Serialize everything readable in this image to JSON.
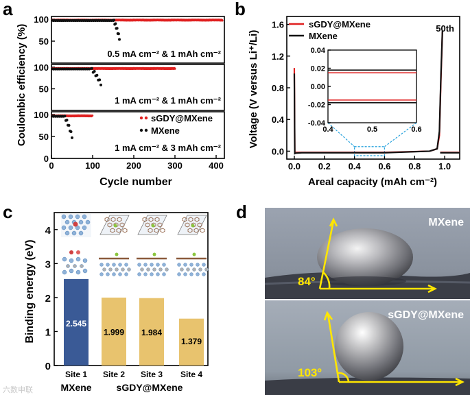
{
  "panel_letters": {
    "a": "a",
    "b": "b",
    "c": "c",
    "d": "d"
  },
  "chart_data": [
    {
      "id": "a",
      "type": "scatter",
      "ylabel": "Coulombic efficiency (%)",
      "xlabel": "Cycle number",
      "xlim": [
        0,
        420
      ],
      "x_ticks": [
        "0",
        "100",
        "200",
        "300",
        "400"
      ],
      "y_ticks": [
        "0",
        "50",
        "100"
      ],
      "legend": [
        "sGDY@MXene",
        "MXene"
      ],
      "series_colors": {
        "sGDY@MXene": "#e02020",
        "MXene": "#111111"
      },
      "subplots": [
        {
          "condition": "0.5 mA cm⁻² & 1 mAh cm⁻²",
          "sGDY_end_cycle": 415,
          "sGDY_ce": 98,
          "MXene_stable_until": 150,
          "MXene_end_cycle": 165,
          "MXene_ce": 97,
          "MXene_final_ce": 57
        },
        {
          "condition": "1 mA cm⁻² & 1 mAh cm⁻²",
          "sGDY_end_cycle": 300,
          "sGDY_ce": 97,
          "MXene_stable_until": 95,
          "MXene_end_cycle": 120,
          "MXene_ce": 96,
          "MXene_final_ce": 62
        },
        {
          "condition": "1 mA cm⁻² & 3 mAh cm⁻²",
          "sGDY_end_cycle": 100,
          "sGDY_ce": 97,
          "MXene_stable_until": 30,
          "MXene_end_cycle": 50,
          "MXene_ce": 96,
          "MXene_final_ce": 50
        }
      ]
    },
    {
      "id": "b",
      "type": "line",
      "xlabel": "Areal capacity (mAh cm⁻²)",
      "ylabel": "Voltage (V versus Li⁺/Li)",
      "xlim": [
        -0.05,
        1.1
      ],
      "ylim": [
        -0.1,
        1.7
      ],
      "x_ticks": [
        "0.0",
        "0.2",
        "0.4",
        "0.6",
        "0.8",
        "1.0"
      ],
      "y_ticks": [
        "0.0",
        "0.4",
        "0.8",
        "1.2",
        "1.6"
      ],
      "annotation": "50th",
      "legend": [
        "sGDY@MXene",
        "MXene"
      ],
      "series": [
        {
          "name": "sGDY@MXene",
          "color": "#e02020",
          "x": [
            0,
            0.003,
            0.01,
            0.05,
            0.3,
            0.6,
            0.9,
            0.95,
            0.965,
            0.975,
            0.985
          ],
          "y": [
            1.05,
            -0.02,
            -0.015,
            -0.015,
            -0.015,
            -0.015,
            0.0,
            0.03,
            0.2,
            0.9,
            1.5
          ]
        },
        {
          "name": "MXene",
          "color": "#111111",
          "x": [
            0,
            0.003,
            0.01,
            0.05,
            0.3,
            0.6,
            0.9,
            0.95,
            0.965,
            0.975,
            0.985
          ],
          "y": [
            0.98,
            -0.03,
            -0.025,
            -0.02,
            -0.02,
            -0.02,
            0.0,
            0.03,
            0.25,
            0.95,
            1.52
          ]
        },
        {
          "name": "sGDY@MXene discharge",
          "color": "#e02020",
          "x": [
            0.97,
            1.02,
            1.1
          ],
          "y": [
            -0.015,
            -0.015,
            -0.015
          ]
        },
        {
          "name": "MXene discharge",
          "color": "#111111",
          "x": [
            0.97,
            1.02,
            1.1
          ],
          "y": [
            -0.02,
            -0.02,
            -0.02
          ]
        }
      ],
      "inset": {
        "xlim": [
          0.4,
          0.6
        ],
        "ylim": [
          -0.04,
          0.04
        ],
        "x_ticks": [
          "0.4",
          "0.5",
          "0.6"
        ],
        "y_ticks": [
          "0.04",
          "0.02",
          "0.00",
          "-0.02",
          "-0.04"
        ],
        "lines": [
          {
            "name": "MXene charge",
            "color": "#111111",
            "y": 0.018
          },
          {
            "name": "sGDY@MXene charge",
            "color": "#e02020",
            "y": 0.015
          },
          {
            "name": "sGDY@MXene discharge",
            "color": "#e02020",
            "y": -0.015
          },
          {
            "name": "MXene discharge",
            "color": "#111111",
            "y": -0.018
          }
        ]
      }
    },
    {
      "id": "c",
      "type": "bar",
      "ylabel": "Binding energy (eV)",
      "ylim": [
        0,
        4.5
      ],
      "y_ticks": [
        "0",
        "1",
        "2",
        "3",
        "4"
      ],
      "categories": [
        "Site 1",
        "Site 2",
        "Site 3",
        "Site 4"
      ],
      "values": [
        2.545,
        1.999,
        1.984,
        1.379
      ],
      "value_labels": [
        "2.545",
        "1.999",
        "1.984",
        "1.379"
      ],
      "colors": [
        "#3a5a96",
        "#e8c36e",
        "#e8c36e",
        "#e8c36e"
      ],
      "group_labels": [
        "MXene",
        "sGDY@MXene"
      ]
    }
  ],
  "panel_d": {
    "top_label": "MXene",
    "top_angle": "84°",
    "bottom_label": "sGDY@MXene",
    "bottom_angle": "103°"
  },
  "watermark": "六数申联"
}
